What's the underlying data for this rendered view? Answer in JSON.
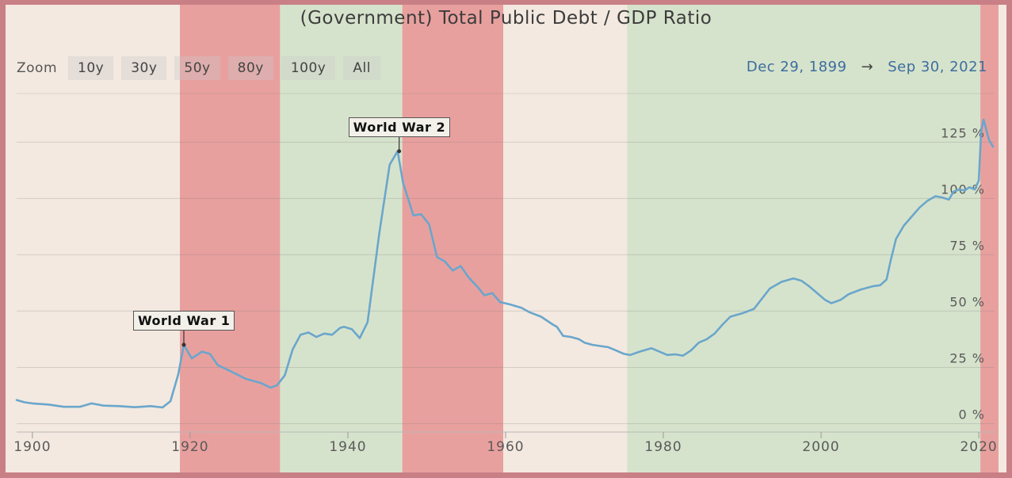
{
  "header": {
    "title": "(Government) Total Public Debt / GDP Ratio"
  },
  "toolbar": {
    "zoom_label": "Zoom",
    "zoom_buttons": [
      "10y",
      "30y",
      "50y",
      "80y",
      "100y",
      "All"
    ]
  },
  "range": {
    "start": "Dec 29, 1899",
    "arrow": "→",
    "end": "Sep 30, 2021"
  },
  "colors": {
    "line": "#6aa6cc",
    "recession_band": "#e8a09e",
    "expansion_band": "#d6e3cc",
    "background": "#f3e9e0",
    "border": "#c97f86"
  },
  "chart_data": {
    "type": "line",
    "title": "(Government) Total Public Debt / GDP Ratio",
    "xlim": [
      1898,
      2022
    ],
    "ylim": [
      -3,
      148
    ],
    "x_ticks": [
      "1900",
      "1920",
      "1940",
      "1960",
      "1980",
      "2000",
      "2020"
    ],
    "y_ticks": [
      "0 %",
      "25 %",
      "50 %",
      "75 %",
      "100 %",
      "125 %"
    ],
    "grid": true,
    "bands": [
      {
        "from": 1918.7,
        "to": 1931.4,
        "kind": "red"
      },
      {
        "from": 1931.4,
        "to": 1946.9,
        "kind": "green"
      },
      {
        "from": 1946.9,
        "to": 1959.7,
        "kind": "red"
      },
      {
        "from": 1975.4,
        "to": 2020.2,
        "kind": "green"
      },
      {
        "from": 2020.2,
        "to": 2022.5,
        "kind": "red"
      }
    ],
    "annotations": [
      {
        "label": "World War 1",
        "x": 1919.2,
        "y": 35
      },
      {
        "label": "World War 2",
        "x": 1946.5,
        "y": 121
      }
    ],
    "series": [
      {
        "values": [
          [
            1898.0,
            10.5
          ],
          [
            1899,
            9.5
          ],
          [
            1900,
            9
          ],
          [
            1902,
            8.5
          ],
          [
            1904,
            7.5
          ],
          [
            1906,
            7.5
          ],
          [
            1907.5,
            9
          ],
          [
            1909,
            8
          ],
          [
            1911,
            7.8
          ],
          [
            1913,
            7.3
          ],
          [
            1915,
            7.8
          ],
          [
            1916.5,
            7.2
          ],
          [
            1917.5,
            10
          ],
          [
            1918.5,
            22
          ],
          [
            1919.2,
            35
          ],
          [
            1920.2,
            29
          ],
          [
            1921.5,
            32
          ],
          [
            1922.5,
            31
          ],
          [
            1923.5,
            26
          ],
          [
            1925,
            23.5
          ],
          [
            1927,
            20
          ],
          [
            1929,
            18
          ],
          [
            1930.2,
            16
          ],
          [
            1931,
            17
          ],
          [
            1932,
            21.5
          ],
          [
            1933,
            33
          ],
          [
            1934,
            39.5
          ],
          [
            1935,
            40.5
          ],
          [
            1936,
            38.5
          ],
          [
            1937,
            40
          ],
          [
            1938,
            39.5
          ],
          [
            1939,
            42.5
          ],
          [
            1939.5,
            43
          ],
          [
            1940.5,
            42
          ],
          [
            1941.5,
            38
          ],
          [
            1942.5,
            45
          ],
          [
            1944,
            85
          ],
          [
            1945.3,
            115
          ],
          [
            1946.3,
            121
          ],
          [
            1947,
            107
          ],
          [
            1948.3,
            92.5
          ],
          [
            1949.3,
            93
          ],
          [
            1950.3,
            88.5
          ],
          [
            1951.3,
            74
          ],
          [
            1952.3,
            72
          ],
          [
            1953.3,
            68
          ],
          [
            1954.3,
            70
          ],
          [
            1955.3,
            65
          ],
          [
            1956.5,
            60.5
          ],
          [
            1957.3,
            57
          ],
          [
            1958.3,
            58
          ],
          [
            1959.3,
            54
          ],
          [
            1960.5,
            53
          ],
          [
            1962,
            51.5
          ],
          [
            1963,
            49.5
          ],
          [
            1964.5,
            47.5
          ],
          [
            1966,
            44
          ],
          [
            1966.5,
            43
          ],
          [
            1967.3,
            39
          ],
          [
            1968.3,
            38.5
          ],
          [
            1969.3,
            37.5
          ],
          [
            1970,
            36
          ],
          [
            1971,
            35
          ],
          [
            1972,
            34.5
          ],
          [
            1973,
            34
          ],
          [
            1974,
            32.5
          ],
          [
            1975,
            31
          ],
          [
            1975.8,
            30.5
          ],
          [
            1977,
            32
          ],
          [
            1978.5,
            33.5
          ],
          [
            1979.5,
            32
          ],
          [
            1980.5,
            30.5
          ],
          [
            1981.5,
            30.8
          ],
          [
            1982.5,
            30.2
          ],
          [
            1983.5,
            32.5
          ],
          [
            1984.5,
            36
          ],
          [
            1985.5,
            37.5
          ],
          [
            1986.5,
            40
          ],
          [
            1987.5,
            44
          ],
          [
            1988.5,
            47.5
          ],
          [
            1990,
            49
          ],
          [
            1991.5,
            51
          ],
          [
            1992.5,
            55.5
          ],
          [
            1993.5,
            60
          ],
          [
            1995,
            63
          ],
          [
            1996.5,
            64.5
          ],
          [
            1997.5,
            63.5
          ],
          [
            1998.5,
            61
          ],
          [
            1999.5,
            58
          ],
          [
            2000.5,
            55
          ],
          [
            2001.3,
            53.5
          ],
          [
            2002.5,
            55
          ],
          [
            2003.5,
            57.5
          ],
          [
            2005,
            59.5
          ],
          [
            2006.5,
            61
          ],
          [
            2007.5,
            61.5
          ],
          [
            2008.3,
            64
          ],
          [
            2008.8,
            72
          ],
          [
            2009.5,
            82
          ],
          [
            2010.5,
            88
          ],
          [
            2011.5,
            92
          ],
          [
            2012.5,
            96
          ],
          [
            2013.5,
            99
          ],
          [
            2014.5,
            101
          ],
          [
            2015.3,
            100.5
          ],
          [
            2016.2,
            99.5
          ],
          [
            2016.8,
            103
          ],
          [
            2017.5,
            104
          ],
          [
            2018.2,
            103.5
          ],
          [
            2018.8,
            105
          ],
          [
            2019.5,
            104
          ],
          [
            2020.0,
            108
          ],
          [
            2020.3,
            130
          ],
          [
            2020.6,
            135
          ],
          [
            2021.3,
            126
          ],
          [
            2021.8,
            123
          ]
        ]
      }
    ]
  }
}
